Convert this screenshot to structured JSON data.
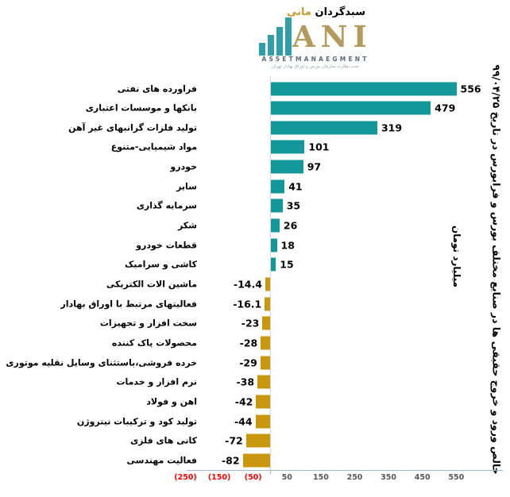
{
  "logo": {
    "brand_fa_primary": "سبدگردان",
    "brand_fa_secondary": "مانی",
    "brand_latin": "ANI",
    "subtitle": "ASSETMANAEGMENT",
    "tagline_fa": "تحت نظارت سازمان بورس و اوراق بهادار تهران",
    "icon_color": "#2e9fa6",
    "gold_color": "#b59a5e"
  },
  "titles": {
    "main_vertical": "خالص ورود و خروج حقیقی ها در صنایع مختلف  بورس و فرابورس در تاریخ ۹۹/۰۴/۲۵",
    "unit_vertical": "میلیارد تومان"
  },
  "chart_data": {
    "type": "bar",
    "orientation": "horizontal",
    "title": "خالص ورود و خروج حقیقی ها در صنایع مختلف بورس و فرابورس در تاریخ ۹۹/۰۴/۲۵",
    "xlabel": "میلیارد تومان",
    "xlim": [
      -290,
      620
    ],
    "grid": false,
    "legend": "none",
    "positive_color": "#12989a",
    "negative_color": "#c8970d",
    "categories": [
      "فراورده های نفتی",
      "بانکها و موسسات اعتباری",
      "تولید فلزات گرانبهای غیر آهن",
      "مواد شیمیایی-متنوع",
      "خودرو",
      "سایر",
      "سرمایه گذاری",
      "شکر",
      "قطعات خودرو",
      "کاشی و سرامیک",
      "ماشین الات الکتریکی",
      "فعالیتهای مرتبط با اوراق بهادار",
      "سخت افزار و تجهیزات",
      "محصولات پاک کننده",
      "خرده فروشی،باستثنای وسایل نقلیه موتوری",
      "نرم افزار و خدمات",
      "اهن و فولاد",
      "تولید کود و ترکیبات نیتروژن",
      "کانی های فلزی",
      "فعالیت مهندسی"
    ],
    "values": [
      556,
      479,
      319,
      101,
      97,
      41,
      35,
      26,
      18,
      15,
      -14.4,
      -16.1,
      -23,
      -28,
      -29,
      -38,
      -42,
      -44,
      -72,
      -82
    ],
    "value_labels": [
      "556",
      "479",
      "319",
      "101",
      "97",
      "41",
      "35",
      "26",
      "18",
      "15",
      "-14.4",
      "-16.1",
      "-23",
      "-28",
      "-29",
      "-38",
      "-42",
      "-44",
      "-72",
      "-82"
    ],
    "x_ticks": [
      {
        "label": "(250)",
        "value": -250,
        "color": "#ff0000"
      },
      {
        "label": "(150)",
        "value": -150,
        "color": "#ff0000"
      },
      {
        "label": "(50)",
        "value": -50,
        "color": "#ff0000"
      },
      {
        "label": "50",
        "value": 50,
        "color": "#595959"
      },
      {
        "label": "150",
        "value": 150,
        "color": "#595959"
      },
      {
        "label": "250",
        "value": 250,
        "color": "#595959"
      },
      {
        "label": "350",
        "value": 350,
        "color": "#595959"
      },
      {
        "label": "450",
        "value": 450,
        "color": "#595959"
      },
      {
        "label": "550",
        "value": 550,
        "color": "#595959"
      }
    ]
  }
}
